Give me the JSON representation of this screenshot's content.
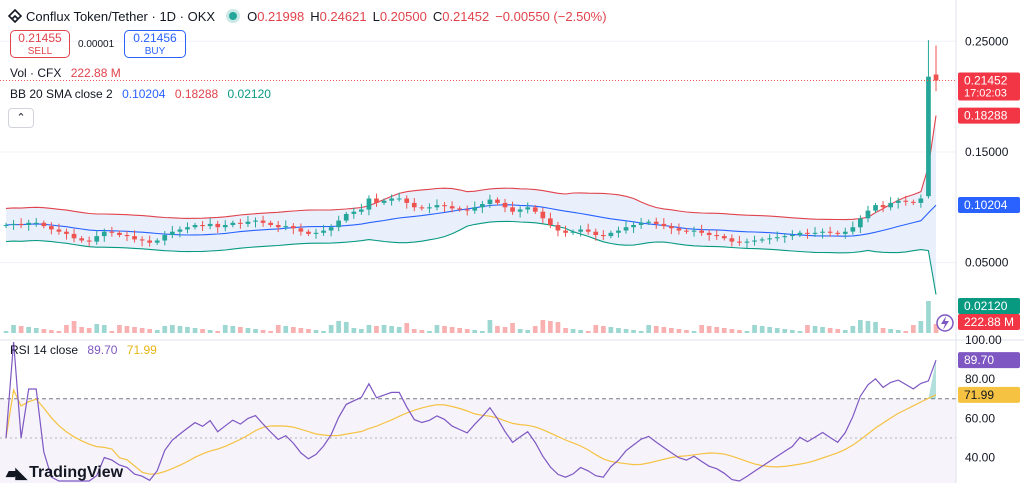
{
  "header": {
    "symbol": "Conflux Token/Tether · 1D · OKX",
    "o_label": "O",
    "o": "0.21998",
    "h_label": "H",
    "h": "0.24621",
    "l_label": "L",
    "l": "0.20500",
    "c_label": "C",
    "c": "0.21452",
    "change": "−0.00550 (−2.50%)"
  },
  "trade": {
    "sell_price": "0.21455",
    "sell_label": "SELL",
    "spread": "0.00001",
    "buy_price": "0.21456",
    "buy_label": "BUY"
  },
  "legend": {
    "vol_label": "Vol · CFX",
    "vol_value": "222.88 M",
    "bb_label": "BB 20 SMA close 2",
    "bb_basis": "0.10204",
    "bb_upper": "0.18288",
    "bb_lower": "0.02120",
    "rsi_label": "RSI 14 close",
    "rsi_value": "89.70",
    "rsi_ma": "71.99"
  },
  "collapse_glyph": "⌃",
  "branding": "TradingView",
  "colors": {
    "up": "#26a69a",
    "down": "#ef5350",
    "bb_upper": "#e0434c",
    "bb_basis": "#2962ff",
    "bb_lower": "#089981",
    "band_fill": "#e3ecfb",
    "rsi": "#7e57c2",
    "rsi_ma": "#f5c242"
  },
  "chart_data": [
    {
      "type": "candlestick",
      "price_axis_ticks": [
        "0.25000",
        "0.15000",
        "0.05000"
      ],
      "price_ticks_values": [
        0.25,
        0.15,
        0.05
      ],
      "ylim": [
        0.0,
        0.262
      ],
      "last_price": "0.21452",
      "countdown": "17:02:03",
      "bb_basis_last": "0.10204",
      "bb_upper_last": "0.18288",
      "bb_lower_last": "0.02120",
      "close_sequence": [
        0.084,
        0.085,
        0.084,
        0.086,
        0.086,
        0.083,
        0.08,
        0.078,
        0.076,
        0.072,
        0.07,
        0.069,
        0.074,
        0.078,
        0.077,
        0.075,
        0.074,
        0.071,
        0.07,
        0.068,
        0.07,
        0.075,
        0.078,
        0.08,
        0.082,
        0.084,
        0.083,
        0.085,
        0.082,
        0.084,
        0.086,
        0.085,
        0.087,
        0.088,
        0.086,
        0.084,
        0.082,
        0.083,
        0.081,
        0.078,
        0.076,
        0.077,
        0.079,
        0.082,
        0.088,
        0.094,
        0.096,
        0.098,
        0.108,
        0.104,
        0.106,
        0.108,
        0.108,
        0.104,
        0.1,
        0.099,
        0.1,
        0.102,
        0.101,
        0.099,
        0.098,
        0.097,
        0.1,
        0.103,
        0.107,
        0.104,
        0.1,
        0.096,
        0.098,
        0.1,
        0.096,
        0.09,
        0.084,
        0.079,
        0.077,
        0.078,
        0.08,
        0.078,
        0.075,
        0.074,
        0.077,
        0.079,
        0.082,
        0.084,
        0.086,
        0.087,
        0.085,
        0.083,
        0.081,
        0.079,
        0.078,
        0.079,
        0.077,
        0.075,
        0.074,
        0.072,
        0.069,
        0.068,
        0.069,
        0.07,
        0.071,
        0.072,
        0.073,
        0.074,
        0.075,
        0.077,
        0.076,
        0.077,
        0.078,
        0.077,
        0.076,
        0.078,
        0.082,
        0.09,
        0.097,
        0.102,
        0.1,
        0.104,
        0.106,
        0.105,
        0.104,
        0.108,
        0.11,
        0.214
      ],
      "volume_value": "222.88 M"
    },
    {
      "type": "line",
      "title": "RSI 14 close",
      "rsi_axis_ticks": [
        "100.00",
        "80.00",
        "60.00",
        "40.00"
      ],
      "ylim": [
        27,
        100
      ],
      "overbought": 70,
      "oversold": 30,
      "rsi_last": "89.70",
      "rsi_ma_last": "71.99"
    }
  ]
}
